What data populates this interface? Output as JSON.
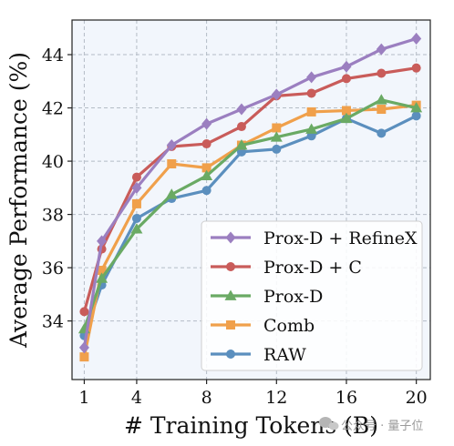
{
  "chart_data": {
    "type": "line",
    "title": "",
    "xlabel": "# Training Tokens (B)",
    "ylabel": "Average Performance (%)",
    "xlim": [
      0.3,
      20.8
    ],
    "ylim": [
      31.8,
      45.3
    ],
    "x_ticks": [
      1,
      4,
      8,
      12,
      16,
      20
    ],
    "y_ticks": [
      34,
      36,
      38,
      40,
      42,
      44
    ],
    "grid": true,
    "legend_position": "lower-right",
    "series": [
      {
        "name": "Prox-D + RefineX",
        "color": "#9b7fc0",
        "marker": "diamond",
        "x": [
          1,
          2,
          4,
          6,
          8,
          10,
          12,
          14,
          16,
          18,
          20
        ],
        "y": [
          33.0,
          37.0,
          39.0,
          40.6,
          41.4,
          41.95,
          42.5,
          43.15,
          43.55,
          44.2,
          44.6
        ]
      },
      {
        "name": "Prox-D + C",
        "color": "#c95c5a",
        "marker": "circle",
        "x": [
          1,
          2,
          4,
          6,
          8,
          10,
          12,
          14,
          16,
          18,
          20
        ],
        "y": [
          34.35,
          36.7,
          39.4,
          40.55,
          40.65,
          41.3,
          42.45,
          42.55,
          43.1,
          43.3,
          43.5
        ]
      },
      {
        "name": "Prox-D",
        "color": "#6aaa64",
        "marker": "triangle",
        "x": [
          1,
          2,
          4,
          6,
          8,
          10,
          12,
          14,
          16,
          18,
          20
        ],
        "y": [
          33.7,
          35.6,
          37.45,
          38.75,
          39.45,
          40.6,
          40.9,
          41.2,
          41.6,
          42.3,
          42.0
        ]
      },
      {
        "name": "Comb",
        "color": "#f0a04b",
        "marker": "square",
        "x": [
          1,
          2,
          4,
          6,
          8,
          10,
          12,
          14,
          16,
          18,
          20
        ],
        "y": [
          32.65,
          35.9,
          38.4,
          39.9,
          39.75,
          40.6,
          41.25,
          41.85,
          41.9,
          41.95,
          42.1
        ]
      },
      {
        "name": "RAW",
        "color": "#5b8fbe",
        "marker": "circle",
        "x": [
          1,
          2,
          4,
          6,
          8,
          10,
          12,
          14,
          16,
          18,
          20
        ],
        "y": [
          33.45,
          35.35,
          37.85,
          38.6,
          38.9,
          40.35,
          40.45,
          40.95,
          41.6,
          41.05,
          41.7
        ]
      }
    ]
  },
  "watermark": {
    "icon": "wechat-icon",
    "text": "公众号 · 量子位"
  }
}
